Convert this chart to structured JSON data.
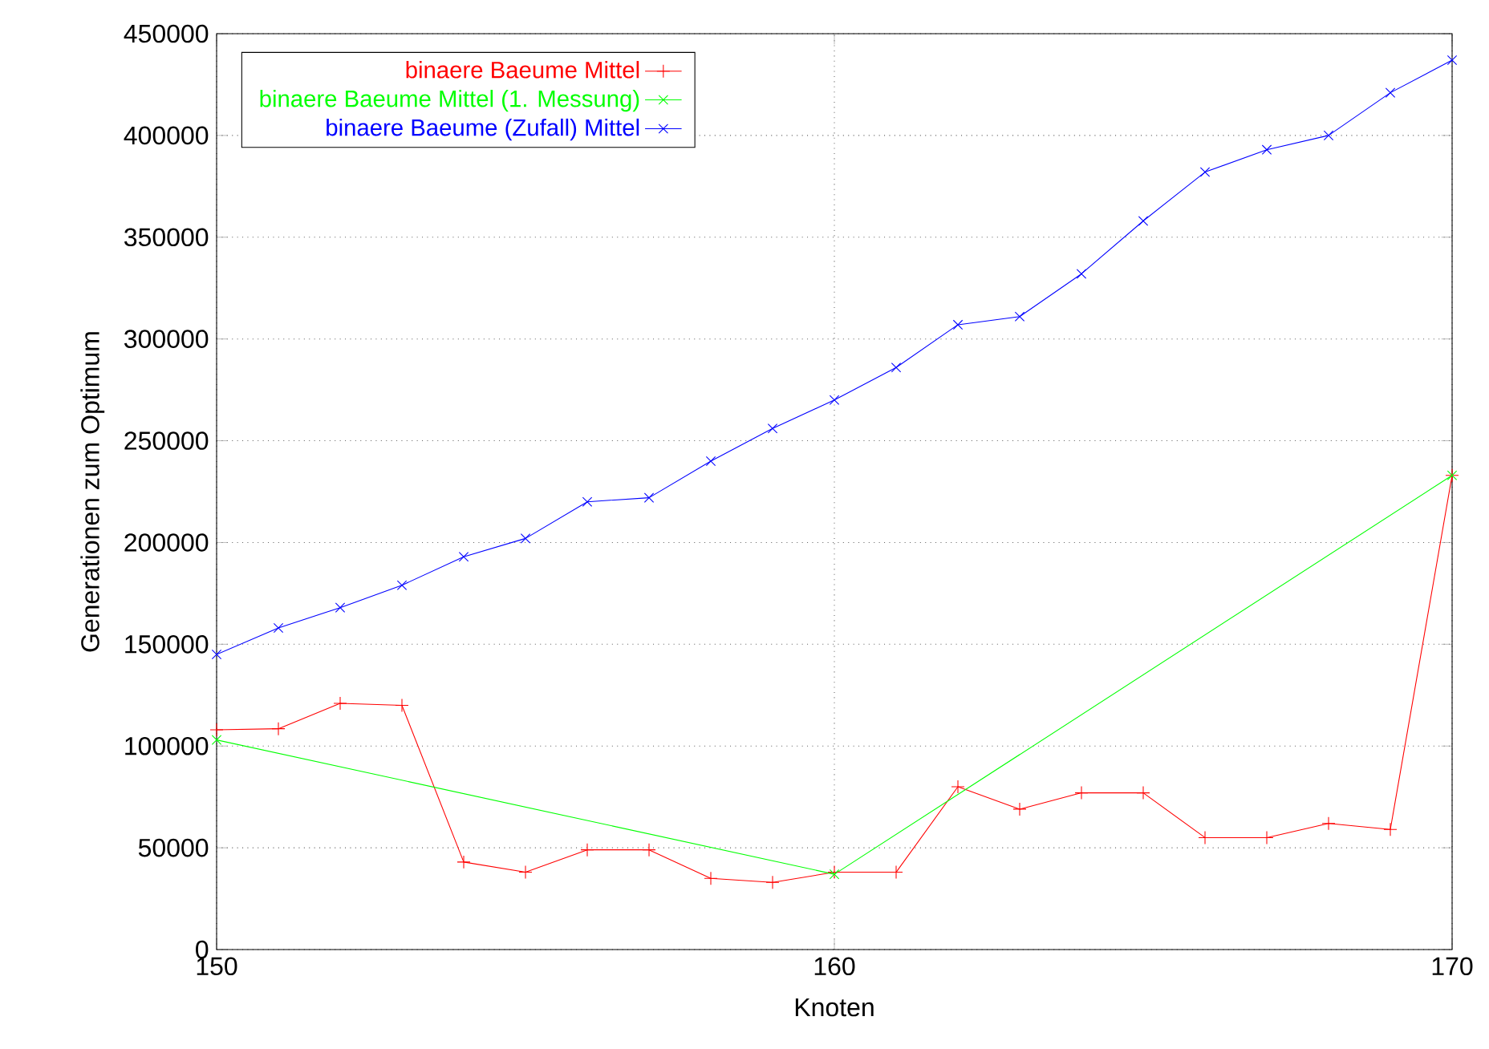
{
  "chart_data": {
    "type": "line",
    "xlabel": "Knoten",
    "ylabel": "Generationen zum Optimum",
    "xlim": [
      150,
      170
    ],
    "xticks": [
      150,
      160,
      170
    ],
    "ylim": [
      0,
      450000
    ],
    "yticks": [
      0,
      50000,
      100000,
      150000,
      200000,
      250000,
      300000,
      350000,
      400000,
      450000
    ],
    "grid": true,
    "legend": "top left",
    "series": [
      {
        "name": "binaere Baeume Mittel",
        "color": "#ff0000",
        "marker": "plus",
        "x": [
          150,
          151,
          152,
          153,
          154,
          155,
          156,
          157,
          158,
          159,
          160,
          161,
          162,
          163,
          164,
          165,
          166,
          167,
          168,
          169,
          170
        ],
        "values": [
          108000,
          108500,
          121000,
          120000,
          43000,
          38000,
          49000,
          49000,
          35000,
          33000,
          38000,
          38000,
          80000,
          69000,
          77000,
          77000,
          55000,
          55000,
          62000,
          59000,
          233000
        ]
      },
      {
        "name": "binaere Baeume Mittel (1. Messung)",
        "color": "#00ff00",
        "marker": "cross",
        "x": [
          150,
          160,
          170
        ],
        "values": [
          103000,
          37000,
          233000
        ]
      },
      {
        "name": "binaere Baeume (Zufall) Mittel",
        "color": "#0000ff",
        "marker": "cross",
        "x": [
          150,
          151,
          152,
          153,
          154,
          155,
          156,
          157,
          158,
          159,
          160,
          161,
          162,
          163,
          164,
          165,
          166,
          167,
          168,
          169,
          170
        ],
        "values": [
          145000,
          158000,
          168000,
          179000,
          193000,
          202000,
          220000,
          222000,
          240000,
          256000,
          270000,
          286000,
          307000,
          311000,
          332000,
          358000,
          382000,
          393000,
          400000,
          421000,
          437000
        ]
      }
    ]
  }
}
